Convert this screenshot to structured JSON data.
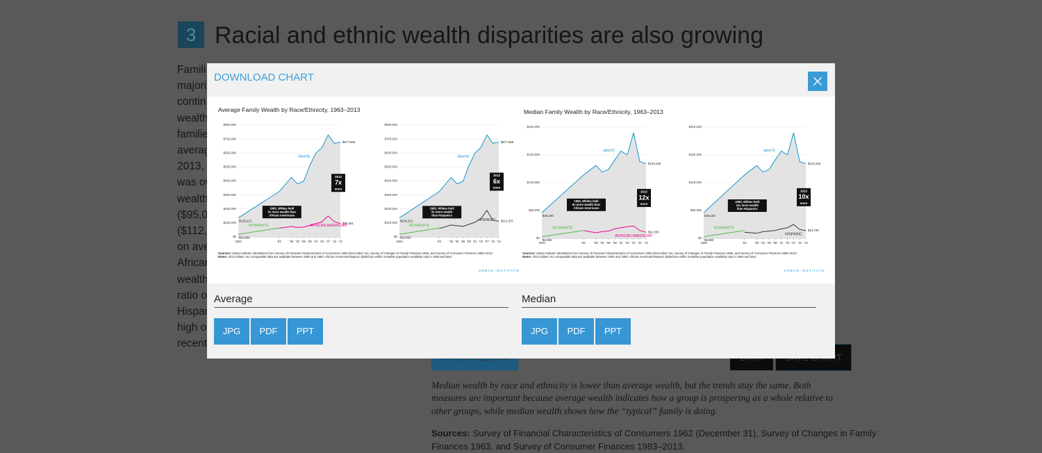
{
  "page": {
    "section_number": "3",
    "heading": "Racial and ethnic wealth disparities are also growing",
    "body_fragments": [
      "Famili",
      "majori",
      "contin",
      "wealth",
      "familie",
      "averag",
      "2013,",
      "was ov",
      "wealth",
      "($95,0",
      "($112,",
      "on ave",
      "Africar",
      "wealth",
      "ratio o",
      "Hispar",
      "high ov",
      "recent"
    ],
    "show_median": "SHOW MEDIAN",
    "data_button": "DATA",
    "save_button": "SAVE CHART",
    "caption_lines": [
      "Median wealth by race and ethnicity is lower than average wealth, but the trends stay the same. Both",
      "measures are important because average wealth indicates how a group is prospering as a whole relative to",
      "other groups, while median wealth shows how the “typical” family is doing."
    ],
    "sources_label": "Sources:",
    "sources_lines": [
      "Survey of Financial Characteristics of Consumers 1962 (December 31), Survey of Changes in Family",
      "Finances 1963, and Survey of Consumer Finances 1983–2013."
    ]
  },
  "modal": {
    "title": "DOWNLOAD CHART",
    "figures": [
      {
        "title": "Average Family Wealth by Race/Ethnicity, 1963–2013",
        "sources_label": "Sources:",
        "sources": "Urban Institute calculations from Survey of Financial Characteristics of Consumers 1962 (December 31), Survey of Changes in Family Finances 1963, and Survey of Consumer Finances 1983–2013.",
        "notes_label": "Notes:",
        "notes": "2013 dollars. No comparable data are available between 1963 and 1983. African American/Hispanic distinction within nonwhite population available only in 1983 and later.",
        "credit": "URBAN INSTITUTE"
      },
      {
        "title": "Median Family Wealth by Race/Ethnicity, 1963–2013",
        "sources_label": "Sources:",
        "sources": "Urban Institute calculations from Survey of Financial Characteristics of Consumers 1962 (December 31), Survey of Changes in Family Finances 1963, and Survey of Consumer Finances 1983–2013.",
        "notes_label": "Notes:",
        "notes": "2013 dollars. No comparable data are available between 1963 and 1983. African American/Hispanic distinction within nonwhite population available only in 1983 and later.",
        "credit": "URBAN INSTITUTE"
      }
    ],
    "downloads": [
      {
        "label": "Average",
        "formats": [
          "JPG",
          "PDF",
          "PPT"
        ]
      },
      {
        "label": "Median",
        "formats": [
          "JPG",
          "PDF",
          "PPT"
        ]
      }
    ]
  },
  "chart_data": [
    {
      "type": "line",
      "x": [
        1963,
        1983,
        1989,
        1992,
        1995,
        1998,
        2001,
        2004,
        2007,
        2010,
        2013
      ],
      "xlim": [
        1963,
        2013
      ],
      "xticks": [
        {
          "value": 1963,
          "label": "1963"
        },
        {
          "value": 1983,
          "label": "'83"
        },
        {
          "value": 1989,
          "label": "'89"
        },
        {
          "value": 1992,
          "label": "'92"
        },
        {
          "value": 1995,
          "label": "'95"
        },
        {
          "value": 1998,
          "label": "'98"
        },
        {
          "value": 2001,
          "label": "'01"
        },
        {
          "value": 2004,
          "label": "'04"
        },
        {
          "value": 2007,
          "label": "'07"
        },
        {
          "value": 2010,
          "label": "'10"
        },
        {
          "value": 2013,
          "label": "'13"
        }
      ],
      "ylim": [
        0,
        800000
      ],
      "yticks": [
        {
          "value": 0,
          "label": "$0"
        },
        {
          "value": 100000,
          "label": "$100,000"
        },
        {
          "value": 200000,
          "label": "$200,000"
        },
        {
          "value": 300000,
          "label": "$300,000"
        },
        {
          "value": 400000,
          "label": "$400,000"
        },
        {
          "value": 500000,
          "label": "$500,000"
        },
        {
          "value": 600000,
          "label": "$600,000"
        },
        {
          "value": 700000,
          "label": "$700,000"
        },
        {
          "value": 800000,
          "label": "$800,000"
        }
      ],
      "grid": true,
      "series": [
        {
          "name": "WHITE",
          "color": "#1696d2",
          "values": [
            136221,
            324000,
            425000,
            380000,
            397000,
            510000,
            600000,
            640000,
            730000,
            670000,
            677656
          ],
          "value_labels": [
            "$136,221",
            null,
            null,
            null,
            null,
            null,
            null,
            null,
            null,
            null,
            "$677,656"
          ]
        },
        {
          "name": "NONWHITE",
          "color": "#55b748",
          "values": [
            18892,
            64000,
            null,
            null,
            null,
            null,
            null,
            null,
            null,
            null,
            null
          ],
          "value_labels": [
            "$18,892",
            null,
            null,
            null,
            null,
            null,
            null,
            null,
            null,
            null,
            null
          ]
        },
        {
          "name": "AFRICAN AMERICAN",
          "color": "#ec008b",
          "values": [
            null,
            62000,
            75000,
            68000,
            70000,
            82000,
            95000,
            108000,
            150000,
            110000,
            95261
          ],
          "value_labels": [
            null,
            null,
            null,
            null,
            null,
            null,
            null,
            null,
            null,
            null,
            "$95,261"
          ]
        }
      ],
      "annotation": [
        "1983, Whites held",
        "5x more wealth than",
        "African Americans"
      ],
      "callout": [
        "2013",
        "7x",
        "more"
      ]
    },
    {
      "type": "line",
      "x": [
        1963,
        1983,
        1989,
        1992,
        1995,
        1998,
        2001,
        2004,
        2007,
        2010,
        2013
      ],
      "xlim": [
        1963,
        2013
      ],
      "xticks": [
        {
          "value": 1963,
          "label": "1963"
        },
        {
          "value": 1983,
          "label": "'83"
        },
        {
          "value": 1989,
          "label": "'89"
        },
        {
          "value": 1992,
          "label": "'92"
        },
        {
          "value": 1995,
          "label": "'95"
        },
        {
          "value": 1998,
          "label": "'98"
        },
        {
          "value": 2001,
          "label": "'01"
        },
        {
          "value": 2004,
          "label": "'04"
        },
        {
          "value": 2007,
          "label": "'07"
        },
        {
          "value": 2010,
          "label": "'10"
        },
        {
          "value": 2013,
          "label": "'13"
        }
      ],
      "ylim": [
        0,
        800000
      ],
      "yticks": [
        {
          "value": 0,
          "label": "$0"
        },
        {
          "value": 100000,
          "label": "$100,000"
        },
        {
          "value": 200000,
          "label": "$200,000"
        },
        {
          "value": 300000,
          "label": "$300,000"
        },
        {
          "value": 400000,
          "label": "$400,000"
        },
        {
          "value": 500000,
          "label": "$500,000"
        },
        {
          "value": 600000,
          "label": "$600,000"
        },
        {
          "value": 700000,
          "label": "$700,000"
        },
        {
          "value": 800000,
          "label": "$800,000"
        }
      ],
      "grid": true,
      "series": [
        {
          "name": "WHITE",
          "color": "#1696d2",
          "values": [
            136221,
            324000,
            425000,
            380000,
            397000,
            510000,
            600000,
            640000,
            730000,
            670000,
            677656
          ],
          "value_labels": [
            "$136,221",
            null,
            null,
            null,
            null,
            null,
            null,
            null,
            null,
            null,
            "$677,656"
          ]
        },
        {
          "name": "NONWHITE",
          "color": "#55b748",
          "values": [
            18892,
            64000,
            null,
            null,
            null,
            null,
            null,
            null,
            null,
            null,
            null
          ],
          "value_labels": [
            "$18,892",
            null,
            null,
            null,
            null,
            null,
            null,
            null,
            null,
            null,
            null
          ]
        },
        {
          "name": "HISPANIC",
          "color": "#353535",
          "values": [
            null,
            60000,
            85000,
            80000,
            75000,
            90000,
            105000,
            130000,
            190000,
            120000,
            112337
          ],
          "value_labels": [
            null,
            null,
            null,
            null,
            null,
            null,
            null,
            null,
            null,
            null,
            "$112,337"
          ]
        }
      ],
      "annotation": [
        "1983, Whites held",
        "5x more wealth",
        "than Hispanics"
      ],
      "callout": [
        "2013",
        "6x",
        "more"
      ]
    },
    {
      "type": "line",
      "x": [
        1963,
        1983,
        1989,
        1992,
        1995,
        1998,
        2001,
        2004,
        2007,
        2010,
        2013
      ],
      "xlim": [
        1963,
        2013
      ],
      "xticks": [
        {
          "value": 1963,
          "label": "1963"
        },
        {
          "value": 1983,
          "label": "'83"
        },
        {
          "value": 1989,
          "label": "'89"
        },
        {
          "value": 1992,
          "label": "'92"
        },
        {
          "value": 1995,
          "label": "'95"
        },
        {
          "value": 1998,
          "label": "'98"
        },
        {
          "value": 2001,
          "label": "'01"
        },
        {
          "value": 2004,
          "label": "'04"
        },
        {
          "value": 2007,
          "label": "'07"
        },
        {
          "value": 2010,
          "label": "'10"
        },
        {
          "value": 2013,
          "label": "'13"
        }
      ],
      "ylim": [
        0,
        200000
      ],
      "yticks": [
        {
          "value": 0,
          "label": "$0"
        },
        {
          "value": 50000,
          "label": "$50,000"
        },
        {
          "value": 100000,
          "label": "$100,000"
        },
        {
          "value": 150000,
          "label": "$150,000"
        },
        {
          "value": 200000,
          "label": "$200,000"
        }
      ],
      "grid": true,
      "series": [
        {
          "name": "WHITE",
          "color": "#1696d2",
          "values": [
            46160,
            114000,
            131000,
            119000,
            124000,
            141000,
            157000,
            150000,
            190000,
            138000,
            134230
          ],
          "value_labels": [
            "$46,160",
            null,
            null,
            null,
            null,
            null,
            null,
            null,
            null,
            null,
            "$134,230"
          ]
        },
        {
          "name": "NONWHITE",
          "color": "#55b748",
          "values": [
            2990,
            14000,
            null,
            null,
            null,
            null,
            null,
            null,
            null,
            null,
            null
          ],
          "value_labels": [
            "$2,990",
            null,
            null,
            null,
            null,
            null,
            null,
            null,
            null,
            null,
            null
          ]
        },
        {
          "name": "AFRICAN AMERICAN",
          "color": "#ec008b",
          "values": [
            null,
            14000,
            10000,
            12000,
            13000,
            17000,
            19000,
            21000,
            22000,
            14000,
            11030
          ],
          "value_labels": [
            null,
            null,
            null,
            null,
            null,
            null,
            null,
            null,
            null,
            null,
            "$11,030"
          ]
        }
      ],
      "annotation": [
        "1983, Whites held",
        "8x more wealth than",
        "African Americans"
      ],
      "callout": [
        "2013",
        "12x",
        "more"
      ]
    },
    {
      "type": "line",
      "x": [
        1963,
        1983,
        1989,
        1992,
        1995,
        1998,
        2001,
        2004,
        2007,
        2010,
        2013
      ],
      "xlim": [
        1963,
        2013
      ],
      "xticks": [
        {
          "value": 1963,
          "label": "1963"
        },
        {
          "value": 1983,
          "label": "'83"
        },
        {
          "value": 1989,
          "label": "'89"
        },
        {
          "value": 1992,
          "label": "'92"
        },
        {
          "value": 1995,
          "label": "'95"
        },
        {
          "value": 1998,
          "label": "'98"
        },
        {
          "value": 2001,
          "label": "'01"
        },
        {
          "value": 2004,
          "label": "'04"
        },
        {
          "value": 2007,
          "label": "'07"
        },
        {
          "value": 2010,
          "label": "'10"
        },
        {
          "value": 2013,
          "label": "'13"
        }
      ],
      "ylim": [
        0,
        200000
      ],
      "yticks": [
        {
          "value": 0,
          "label": "$0"
        },
        {
          "value": 50000,
          "label": "$50,000"
        },
        {
          "value": 100000,
          "label": "$100,000"
        },
        {
          "value": 150000,
          "label": "$150,000"
        },
        {
          "value": 200000,
          "label": "$200,000"
        }
      ],
      "grid": true,
      "series": [
        {
          "name": "WHITE",
          "color": "#1696d2",
          "values": [
            46160,
            114000,
            131000,
            119000,
            124000,
            141000,
            157000,
            150000,
            190000,
            138000,
            134230
          ],
          "value_labels": [
            "$46,160",
            null,
            null,
            null,
            null,
            null,
            null,
            null,
            null,
            null,
            "$134,230"
          ]
        },
        {
          "name": "NONWHITE",
          "color": "#55b748",
          "values": [
            2990,
            14000,
            null,
            null,
            null,
            null,
            null,
            null,
            null,
            null,
            null
          ],
          "value_labels": [
            "$2,990",
            null,
            null,
            null,
            null,
            null,
            null,
            null,
            null,
            null,
            null
          ]
        },
        {
          "name": "HISPANIC",
          "color": "#353535",
          "values": [
            null,
            11000,
            9000,
            12000,
            13000,
            14000,
            17000,
            19000,
            25000,
            16000,
            13730
          ],
          "value_labels": [
            null,
            null,
            null,
            null,
            null,
            null,
            null,
            null,
            null,
            null,
            "$13,730"
          ]
        }
      ],
      "annotation": [
        "1983, Whites held",
        "11x more wealth",
        "than Hispanics"
      ],
      "callout": [
        "2013",
        "10x",
        "more"
      ]
    }
  ]
}
